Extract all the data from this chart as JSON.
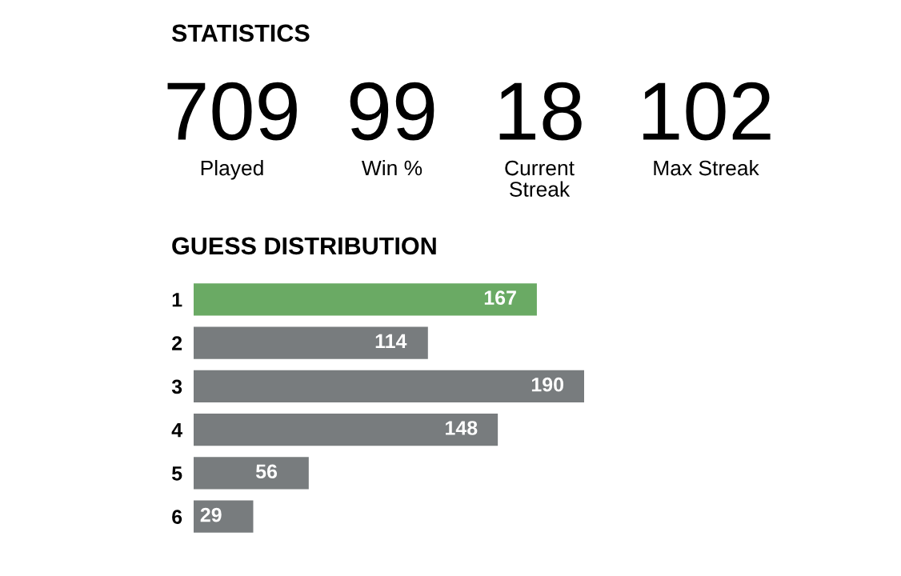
{
  "chart_data": [
    {
      "type": "other",
      "title": "STATISTICS",
      "categories": [
        "Played",
        "Win %",
        "Current\nStreak",
        "Max Streak"
      ],
      "values": [
        709,
        99,
        18,
        102
      ],
      "data_labels": true
    },
    {
      "type": "bar",
      "orientation": "horizontal",
      "title": "GUESS DISTRIBUTION",
      "categories": [
        "1",
        "2",
        "3",
        "4",
        "5",
        "6"
      ],
      "values": [
        167,
        114,
        190,
        148,
        56,
        29
      ],
      "colors": [
        "#6aaa64",
        "#787c7e",
        "#787c7e",
        "#787c7e",
        "#787c7e",
        "#787c7e"
      ],
      "data_labels": true
    }
  ]
}
